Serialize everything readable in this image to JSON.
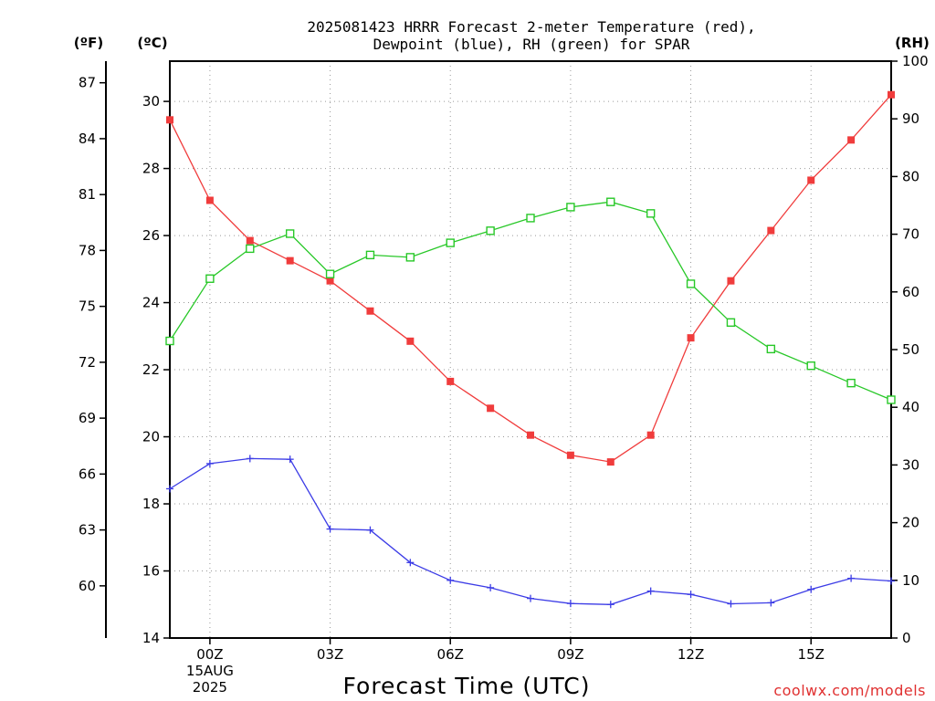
{
  "chart_data": {
    "type": "line",
    "title_line1": "2025081423 HRRR Forecast 2-meter Temperature (red),",
    "title_line2": "Dewpoint (blue), RH (green) for SPAR",
    "xlabel": "Forecast Time (UTC)",
    "credit": "coolwx.com/models",
    "units": {
      "fahrenheit": "(ºF)",
      "celsius": "(ºC)",
      "rh": "(RH)"
    },
    "x_hours": [
      -1,
      0,
      1,
      2,
      3,
      4,
      5,
      6,
      7,
      8,
      9,
      10,
      11,
      12,
      13,
      14,
      15,
      16,
      17
    ],
    "xlim": [
      -1,
      17
    ],
    "x_ticks": [
      {
        "hour": 0,
        "label": "00Z",
        "sub1": "15AUG",
        "sub2": "2025"
      },
      {
        "hour": 3,
        "label": "03Z",
        "sub1": "",
        "sub2": ""
      },
      {
        "hour": 6,
        "label": "06Z",
        "sub1": "",
        "sub2": ""
      },
      {
        "hour": 9,
        "label": "09Z",
        "sub1": "",
        "sub2": ""
      },
      {
        "hour": 12,
        "label": "12Z",
        "sub1": "",
        "sub2": ""
      },
      {
        "hour": 15,
        "label": "15Z",
        "sub1": "",
        "sub2": ""
      }
    ],
    "ylim_c": [
      14.0,
      31.2
    ],
    "celsius_ticks": [
      "14",
      "16",
      "18",
      "20",
      "22",
      "24",
      "26",
      "28",
      "30"
    ],
    "fahrenheit_ticks": [
      "60",
      "63",
      "66",
      "69",
      "72",
      "75",
      "78",
      "81",
      "84",
      "87"
    ],
    "rh_ticks": [
      "0",
      "10",
      "20",
      "30",
      "40",
      "50",
      "60",
      "70",
      "80",
      "90",
      "100"
    ],
    "ylim_rh": [
      0,
      100
    ],
    "series": [
      {
        "key": "temperature",
        "axis": "celsius",
        "color": "#f03c3c",
        "marker": "filled-square",
        "values": [
          29.45,
          27.05,
          25.85,
          25.25,
          24.65,
          23.75,
          22.85,
          21.65,
          20.85,
          20.05,
          19.45,
          19.25,
          20.05,
          22.95,
          24.65,
          26.15,
          27.65,
          28.85,
          30.2
        ]
      },
      {
        "key": "dewpoint",
        "axis": "celsius",
        "color": "#3c3ce6",
        "marker": "plus",
        "values": [
          18.45,
          19.2,
          19.35,
          19.33,
          17.25,
          17.22,
          16.25,
          15.72,
          15.5,
          15.18,
          15.03,
          15.0,
          15.4,
          15.3,
          15.02,
          15.05,
          15.45,
          15.78,
          15.7
        ]
      },
      {
        "key": "rh",
        "axis": "rh",
        "color": "#28c828",
        "marker": "open-square",
        "values": [
          51.5,
          62.3,
          67.5,
          70.1,
          63.1,
          66.4,
          66.0,
          68.5,
          70.6,
          72.8,
          74.7,
          75.6,
          73.6,
          61.4,
          54.7,
          50.1,
          47.2,
          44.2,
          41.3
        ]
      }
    ]
  }
}
